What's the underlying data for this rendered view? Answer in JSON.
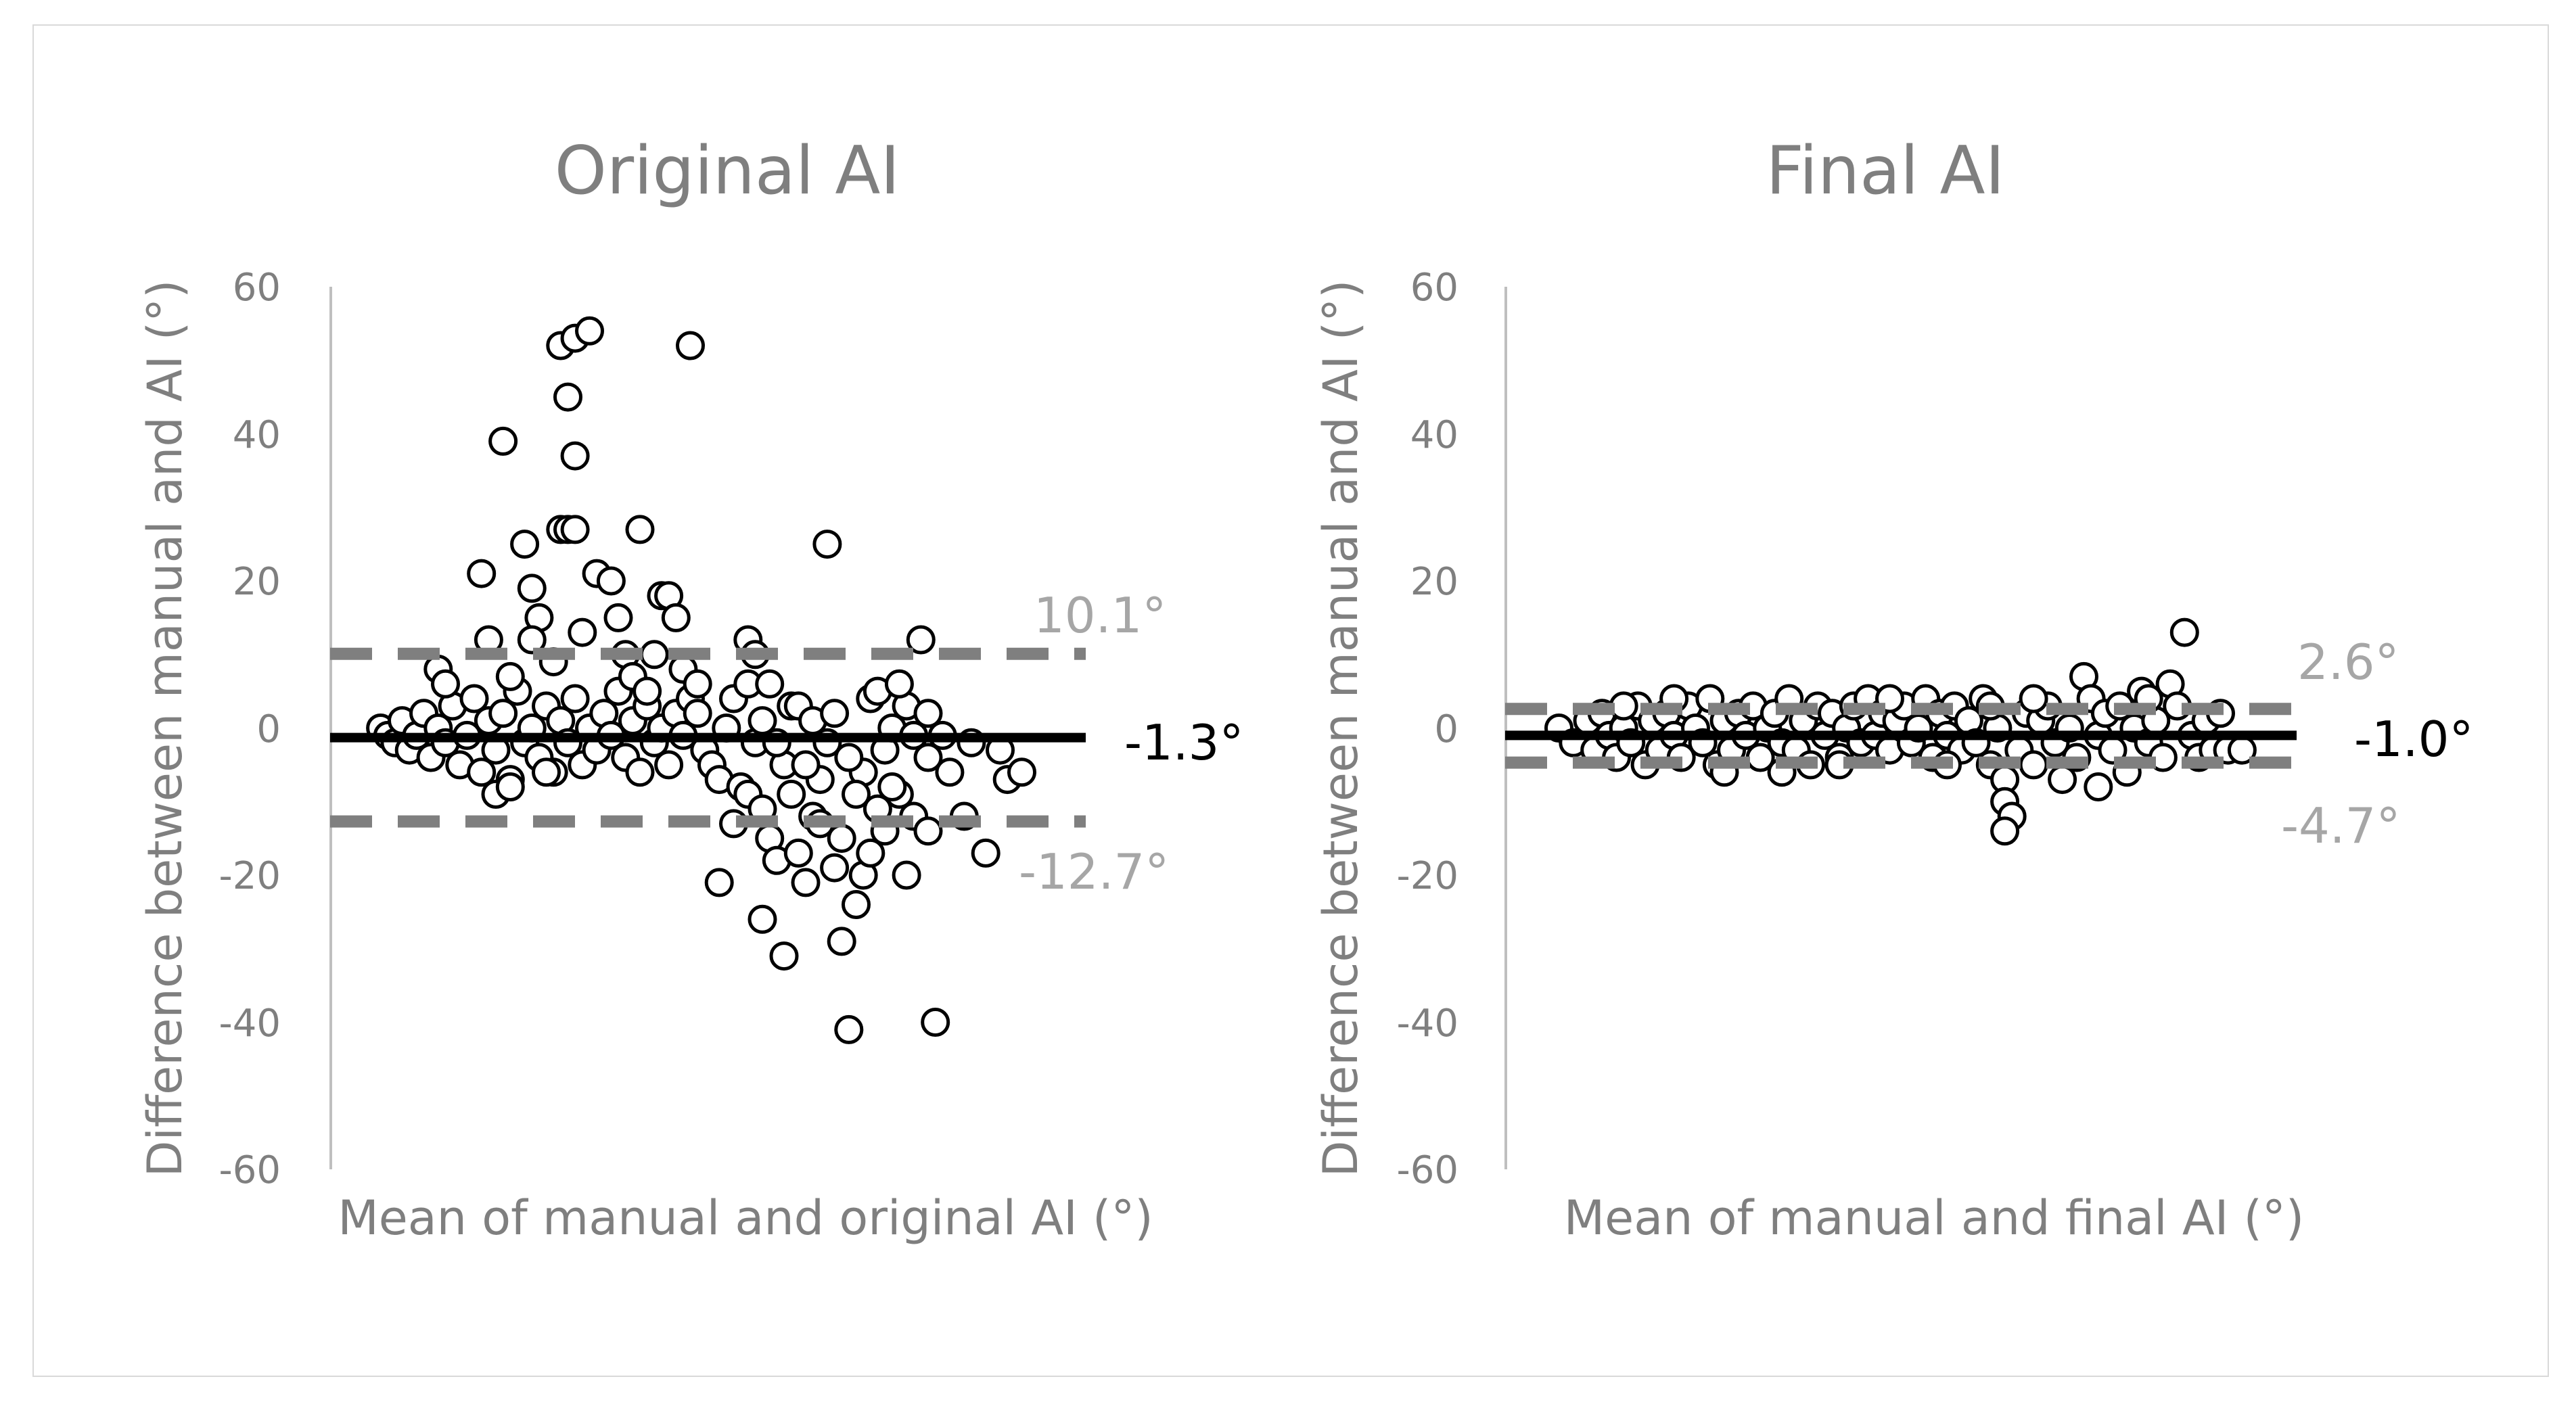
{
  "chart_data": [
    {
      "type": "scatter",
      "title": "Original AI",
      "xlabel": "Mean of manual and original AI (°)",
      "ylabel": "Difference between manual and AI (°)",
      "ylim": [
        -60,
        60
      ],
      "xlim": [
        0,
        100
      ],
      "yticks": [
        "60",
        "40",
        "20",
        "0",
        "-20",
        "-40",
        "-60"
      ],
      "grid": false,
      "bias": -1.3,
      "upper_loa": 10.1,
      "lower_loa": -12.7,
      "annotations": {
        "bias": "-1.3°",
        "upper": "10.1°",
        "lower": "-12.7°"
      },
      "colors": {
        "points_edge": "#000000",
        "points_fill": "#ffffff",
        "bias": "#000000",
        "loa": "#7f7f7f",
        "loa_text": "#a6a6a6"
      },
      "points": [
        [
          4,
          0
        ],
        [
          5,
          -1
        ],
        [
          6,
          -2
        ],
        [
          7,
          1
        ],
        [
          8,
          -3
        ],
        [
          9,
          -1
        ],
        [
          10,
          2
        ],
        [
          11,
          -4
        ],
        [
          12,
          0
        ],
        [
          13,
          -2
        ],
        [
          14,
          3
        ],
        [
          15,
          -5
        ],
        [
          12,
          8
        ],
        [
          13,
          6
        ],
        [
          16,
          -1
        ],
        [
          17,
          4
        ],
        [
          18,
          -6
        ],
        [
          19,
          1
        ],
        [
          20,
          -3
        ],
        [
          21,
          2
        ],
        [
          22,
          -7
        ],
        [
          23,
          5
        ],
        [
          24,
          -2
        ],
        [
          25,
          0
        ],
        [
          20,
          -9
        ],
        [
          26,
          -4
        ],
        [
          27,
          3
        ],
        [
          28,
          -6
        ],
        [
          29,
          1
        ],
        [
          30,
          -2
        ],
        [
          31,
          4
        ],
        [
          32,
          -5
        ],
        [
          33,
          0
        ],
        [
          34,
          -3
        ],
        [
          35,
          2
        ],
        [
          36,
          -1
        ],
        [
          22,
          -8
        ],
        [
          37,
          5
        ],
        [
          38,
          -4
        ],
        [
          39,
          1
        ],
        [
          40,
          -6
        ],
        [
          41,
          3
        ],
        [
          42,
          -2
        ],
        [
          43,
          0
        ],
        [
          44,
          -5
        ],
        [
          45,
          2
        ],
        [
          46,
          -1
        ],
        [
          47,
          4
        ],
        [
          18,
          21
        ],
        [
          21,
          39
        ],
        [
          24,
          25
        ],
        [
          25,
          19
        ],
        [
          26,
          15
        ],
        [
          25,
          12
        ],
        [
          19,
          12
        ],
        [
          22,
          7
        ],
        [
          27,
          -6
        ],
        [
          28,
          9
        ],
        [
          29,
          27
        ],
        [
          30,
          27
        ],
        [
          31,
          27
        ],
        [
          32,
          13
        ],
        [
          30,
          45
        ],
        [
          29,
          52
        ],
        [
          31,
          53
        ],
        [
          33,
          54
        ],
        [
          31,
          37
        ],
        [
          34,
          21
        ],
        [
          36,
          20
        ],
        [
          40,
          27
        ],
        [
          37,
          15
        ],
        [
          38,
          10
        ],
        [
          39,
          7
        ],
        [
          43,
          18
        ],
        [
          44,
          18
        ],
        [
          45,
          15
        ],
        [
          42,
          10
        ],
        [
          41,
          5
        ],
        [
          46,
          8
        ],
        [
          48,
          6
        ],
        [
          47,
          52
        ],
        [
          48,
          2
        ],
        [
          49,
          -3
        ],
        [
          50,
          -5
        ],
        [
          51,
          -7
        ],
        [
          52,
          0
        ],
        [
          53,
          4
        ],
        [
          54,
          -8
        ],
        [
          55,
          6
        ],
        [
          56,
          -2
        ],
        [
          57,
          1
        ],
        [
          51,
          -21
        ],
        [
          53,
          -13
        ],
        [
          55,
          12
        ],
        [
          56,
          10
        ],
        [
          55,
          -9
        ],
        [
          57,
          -11
        ],
        [
          58,
          -15
        ],
        [
          59,
          -18
        ],
        [
          60,
          -5
        ],
        [
          61,
          3
        ],
        [
          57,
          -26
        ],
        [
          60,
          -31
        ],
        [
          62,
          -17
        ],
        [
          63,
          -21
        ],
        [
          64,
          -12
        ],
        [
          65,
          -7
        ],
        [
          66,
          25
        ],
        [
          66,
          -2
        ],
        [
          67,
          -19
        ],
        [
          68,
          -29
        ],
        [
          69,
          -41
        ],
        [
          70,
          -24
        ],
        [
          71,
          -20
        ],
        [
          71,
          -6
        ],
        [
          72,
          -17
        ],
        [
          73,
          -11
        ],
        [
          72,
          4
        ],
        [
          74,
          -3
        ],
        [
          75,
          0
        ],
        [
          76,
          -9
        ],
        [
          77,
          -20
        ],
        [
          78,
          -12
        ],
        [
          79,
          12
        ],
        [
          80,
          -14
        ],
        [
          81,
          -40
        ],
        [
          80,
          -4
        ],
        [
          82,
          -1
        ],
        [
          85,
          -12
        ],
        [
          88,
          -17
        ],
        [
          90,
          -3
        ],
        [
          91,
          -7
        ],
        [
          93,
          -6
        ],
        [
          59,
          -2
        ],
        [
          62,
          3
        ],
        [
          63,
          -5
        ],
        [
          64,
          1
        ],
        [
          67,
          2
        ],
        [
          69,
          -4
        ],
        [
          73,
          5
        ],
        [
          75,
          -8
        ],
        [
          77,
          3
        ],
        [
          78,
          -1
        ],
        [
          80,
          2
        ],
        [
          83,
          -6
        ],
        [
          86,
          -2
        ],
        [
          58,
          6
        ],
        [
          61,
          -9
        ],
        [
          65,
          -13
        ],
        [
          68,
          -15
        ],
        [
          70,
          -9
        ],
        [
          74,
          -14
        ],
        [
          76,
          6
        ]
      ]
    },
    {
      "type": "scatter",
      "title": "Final AI",
      "xlabel": "Mean of manual and final AI (°)",
      "ylabel": "Difference between manual and AI (°)",
      "ylim": [
        -60,
        60
      ],
      "xlim": [
        0,
        100
      ],
      "yticks": [
        "60",
        "40",
        "20",
        "0",
        "-20",
        "-40",
        "-60"
      ],
      "grid": false,
      "bias": -1.0,
      "upper_loa": 2.6,
      "lower_loa": -4.7,
      "annotations": {
        "bias": "-1.0°",
        "upper": "2.6°",
        "lower": "-4.7°"
      },
      "colors": {
        "points_edge": "#000000",
        "points_fill": "#ffffff",
        "bias": "#000000",
        "loa": "#7f7f7f",
        "loa_text": "#a6a6a6"
      },
      "points": [
        [
          4,
          0
        ],
        [
          6,
          -2
        ],
        [
          8,
          1
        ],
        [
          9,
          -3
        ],
        [
          10,
          2
        ],
        [
          11,
          -1
        ],
        [
          12,
          -4
        ],
        [
          13,
          0
        ],
        [
          14,
          -2
        ],
        [
          15,
          3
        ],
        [
          16,
          -5
        ],
        [
          17,
          1
        ],
        [
          18,
          -3
        ],
        [
          19,
          2
        ],
        [
          20,
          -1
        ],
        [
          21,
          -4
        ],
        [
          22,
          3
        ],
        [
          23,
          0
        ],
        [
          24,
          -2
        ],
        [
          25,
          4
        ],
        [
          26,
          -5
        ],
        [
          27,
          1
        ],
        [
          28,
          -3
        ],
        [
          29,
          2
        ],
        [
          30,
          -1
        ],
        [
          31,
          3
        ],
        [
          32,
          -4
        ],
        [
          33,
          0
        ],
        [
          34,
          2
        ],
        [
          35,
          -2
        ],
        [
          36,
          4
        ],
        [
          37,
          -3
        ],
        [
          38,
          1
        ],
        [
          39,
          -5
        ],
        [
          40,
          3
        ],
        [
          41,
          -1
        ],
        [
          42,
          2
        ],
        [
          43,
          -4
        ],
        [
          44,
          0
        ],
        [
          45,
          3
        ],
        [
          46,
          -2
        ],
        [
          47,
          4
        ],
        [
          48,
          -1
        ],
        [
          49,
          2
        ],
        [
          50,
          -3
        ],
        [
          51,
          1
        ],
        [
          52,
          3
        ],
        [
          53,
          -2
        ],
        [
          54,
          0
        ],
        [
          55,
          4
        ],
        [
          56,
          -4
        ],
        [
          57,
          2
        ],
        [
          58,
          -1
        ],
        [
          59,
          3
        ],
        [
          60,
          -3
        ],
        [
          61,
          1
        ],
        [
          62,
          -2
        ],
        [
          63,
          4
        ],
        [
          64,
          -5
        ],
        [
          65,
          0
        ],
        [
          66,
          -7
        ],
        [
          66,
          -10
        ],
        [
          67,
          -12
        ],
        [
          66,
          -14
        ],
        [
          68,
          -3
        ],
        [
          69,
          2
        ],
        [
          70,
          -5
        ],
        [
          71,
          1
        ],
        [
          72,
          3
        ],
        [
          73,
          -2
        ],
        [
          74,
          -7
        ],
        [
          75,
          0
        ],
        [
          76,
          -4
        ],
        [
          77,
          7
        ],
        [
          78,
          4
        ],
        [
          79,
          -1
        ],
        [
          80,
          2
        ],
        [
          81,
          -3
        ],
        [
          82,
          3
        ],
        [
          83,
          -6
        ],
        [
          84,
          0
        ],
        [
          85,
          5
        ],
        [
          86,
          -2
        ],
        [
          87,
          1
        ],
        [
          88,
          -4
        ],
        [
          89,
          6
        ],
        [
          90,
          3
        ],
        [
          91,
          13
        ],
        [
          92,
          -1
        ],
        [
          93,
          -4
        ],
        [
          94,
          1
        ],
        [
          95,
          -3
        ],
        [
          96,
          2
        ],
        [
          97,
          -3
        ],
        [
          99,
          -3
        ],
        [
          13,
          3
        ],
        [
          20,
          4
        ],
        [
          27,
          -6
        ],
        [
          35,
          -6
        ],
        [
          43,
          -5
        ],
        [
          50,
          4
        ],
        [
          58,
          -5
        ],
        [
          64,
          3
        ],
        [
          70,
          4
        ],
        [
          79,
          -8
        ],
        [
          86,
          4
        ]
      ]
    }
  ]
}
